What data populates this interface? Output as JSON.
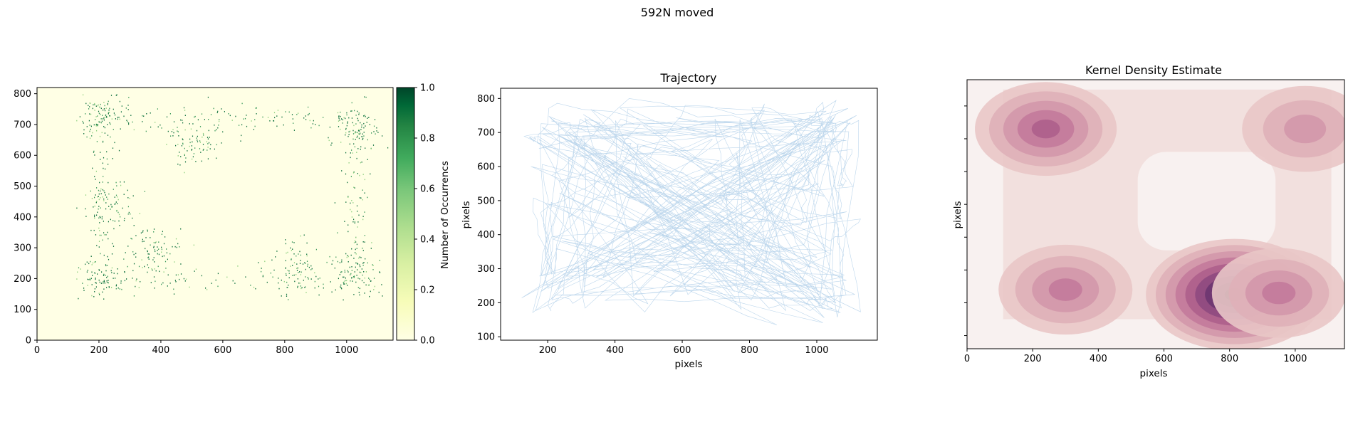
{
  "suptitle": "592N moved",
  "colors": {
    "heat_low": "#ffffe5",
    "heat_high": "#004529",
    "trajectory": "#a6c8e6",
    "kde_low": "#f8f1f0",
    "kde_high": "#2d1e3e"
  },
  "chart_data": [
    {
      "type": "heatmap",
      "title": "",
      "xlabel": "",
      "ylabel": "",
      "xlim": [
        0,
        1150
      ],
      "ylim": [
        0,
        820
      ],
      "xticks": [
        0,
        200,
        400,
        600,
        800,
        1000
      ],
      "yticks": [
        0,
        100,
        200,
        300,
        400,
        500,
        600,
        700,
        800
      ],
      "colorbar": {
        "label": "Number of Occurrencs",
        "range": [
          0,
          1
        ],
        "ticks": [
          "0.0",
          "0.2",
          "0.4",
          "0.6",
          "0.8",
          "1.0"
        ],
        "colormap": "YlGn"
      },
      "hotspots": [
        {
          "x": 210,
          "y": 740
        },
        {
          "x": 1030,
          "y": 700
        },
        {
          "x": 200,
          "y": 200
        },
        {
          "x": 830,
          "y": 230
        },
        {
          "x": 1030,
          "y": 220
        },
        {
          "x": 380,
          "y": 290
        },
        {
          "x": 230,
          "y": 440
        },
        {
          "x": 500,
          "y": 650
        }
      ]
    },
    {
      "type": "line",
      "title": "Trajectory",
      "xlabel": "pixels",
      "ylabel": "pixels",
      "xlim": [
        60,
        1180
      ],
      "ylim": [
        90,
        830
      ],
      "xticks": [
        200,
        400,
        600,
        800,
        1000
      ],
      "yticks": [
        100,
        200,
        300,
        400,
        500,
        600,
        700,
        800
      ],
      "path_outline": [
        [
          200,
          740
        ],
        [
          1050,
          740
        ],
        [
          1050,
          200
        ],
        [
          200,
          200
        ]
      ]
    },
    {
      "type": "heatmap",
      "title": "Kernel Density Estimate",
      "xlabel": "pixels",
      "ylabel": "pixels",
      "xlim": [
        0,
        1150
      ],
      "ylim": [
        60,
        880
      ],
      "xticks": [
        0,
        200,
        400,
        600,
        800,
        1000
      ],
      "yticks": [
        "",
        "",
        "",
        "",
        "",
        "",
        "",
        ""
      ],
      "density_peaks": [
        {
          "x": 815,
          "y": 225,
          "weight": 1.0
        },
        {
          "x": 300,
          "y": 240,
          "weight": 0.45
        },
        {
          "x": 950,
          "y": 230,
          "weight": 0.45
        },
        {
          "x": 240,
          "y": 730,
          "weight": 0.55
        },
        {
          "x": 1030,
          "y": 730,
          "weight": 0.35
        }
      ]
    }
  ]
}
